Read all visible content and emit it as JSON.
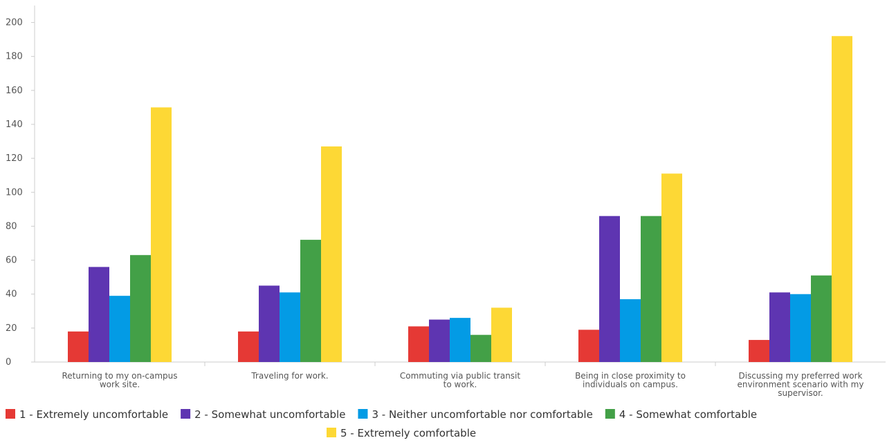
{
  "chart_data": {
    "type": "bar",
    "categories": [
      [
        "Returning to my on-campus",
        "work site."
      ],
      [
        "Traveling for work."
      ],
      [
        "Commuting via public transit",
        "to work."
      ],
      [
        "Being in close proximity to",
        "individuals on campus."
      ],
      [
        "Discussing my preferred work",
        "environment scenario with my",
        "supervisor."
      ]
    ],
    "series": [
      {
        "name": "1 - Extremely uncomfortable",
        "color": "#e53935",
        "values": [
          18,
          18,
          21,
          19,
          13
        ]
      },
      {
        "name": "2 - Somewhat uncomfortable",
        "color": "#5e35b1",
        "values": [
          56,
          45,
          25,
          86,
          41
        ]
      },
      {
        "name": "3 - Neither uncomfortable nor comfortable",
        "color": "#039be5",
        "values": [
          39,
          41,
          26,
          37,
          40
        ]
      },
      {
        "name": "4 - Somewhat comfortable",
        "color": "#43a047",
        "values": [
          63,
          72,
          16,
          86,
          51
        ]
      },
      {
        "name": "5 - Extremely comfortable",
        "color": "#fdd835",
        "values": [
          150,
          127,
          32,
          111,
          192
        ]
      }
    ],
    "ylim": [
      0,
      210
    ],
    "yticks": [
      0,
      20,
      40,
      60,
      80,
      100,
      120,
      140,
      160,
      180,
      200
    ],
    "grid": false,
    "legend": "bottom"
  }
}
